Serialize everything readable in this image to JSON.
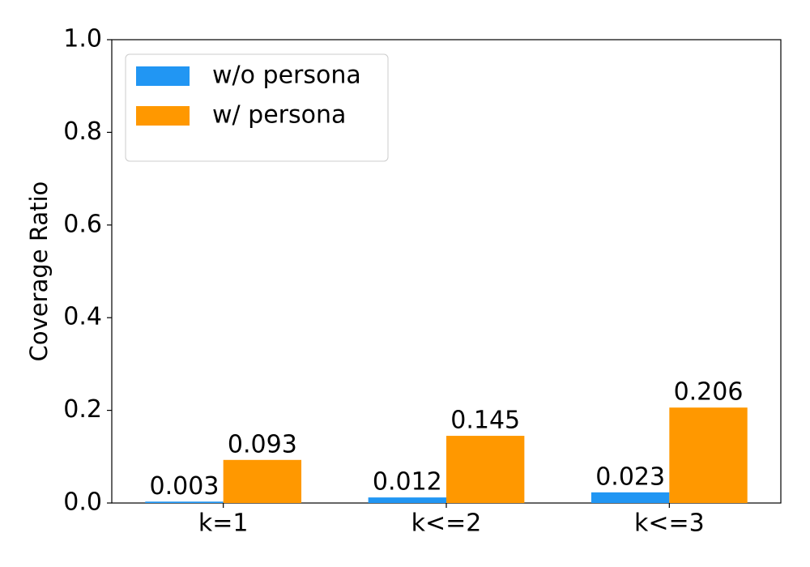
{
  "chart_data": {
    "type": "bar",
    "y_label": "Coverage Ratio",
    "categories": [
      "k=1",
      "k<=2",
      "k<=3"
    ],
    "series": [
      {
        "name": "w/o persona",
        "color": "#2196f3",
        "values": [
          0.003,
          0.012,
          0.023
        ]
      },
      {
        "name": "w/ persona",
        "color": "#ff9800",
        "values": [
          0.093,
          0.145,
          0.206
        ]
      }
    ],
    "ylim": [
      0,
      1
    ],
    "yticks": [
      {
        "value": 0,
        "label": "0.0"
      },
      0.2,
      0.4,
      0.6,
      0.8,
      {
        "value": 1,
        "label": "1.0"
      }
    ],
    "grid": false,
    "legend": "upper left"
  }
}
